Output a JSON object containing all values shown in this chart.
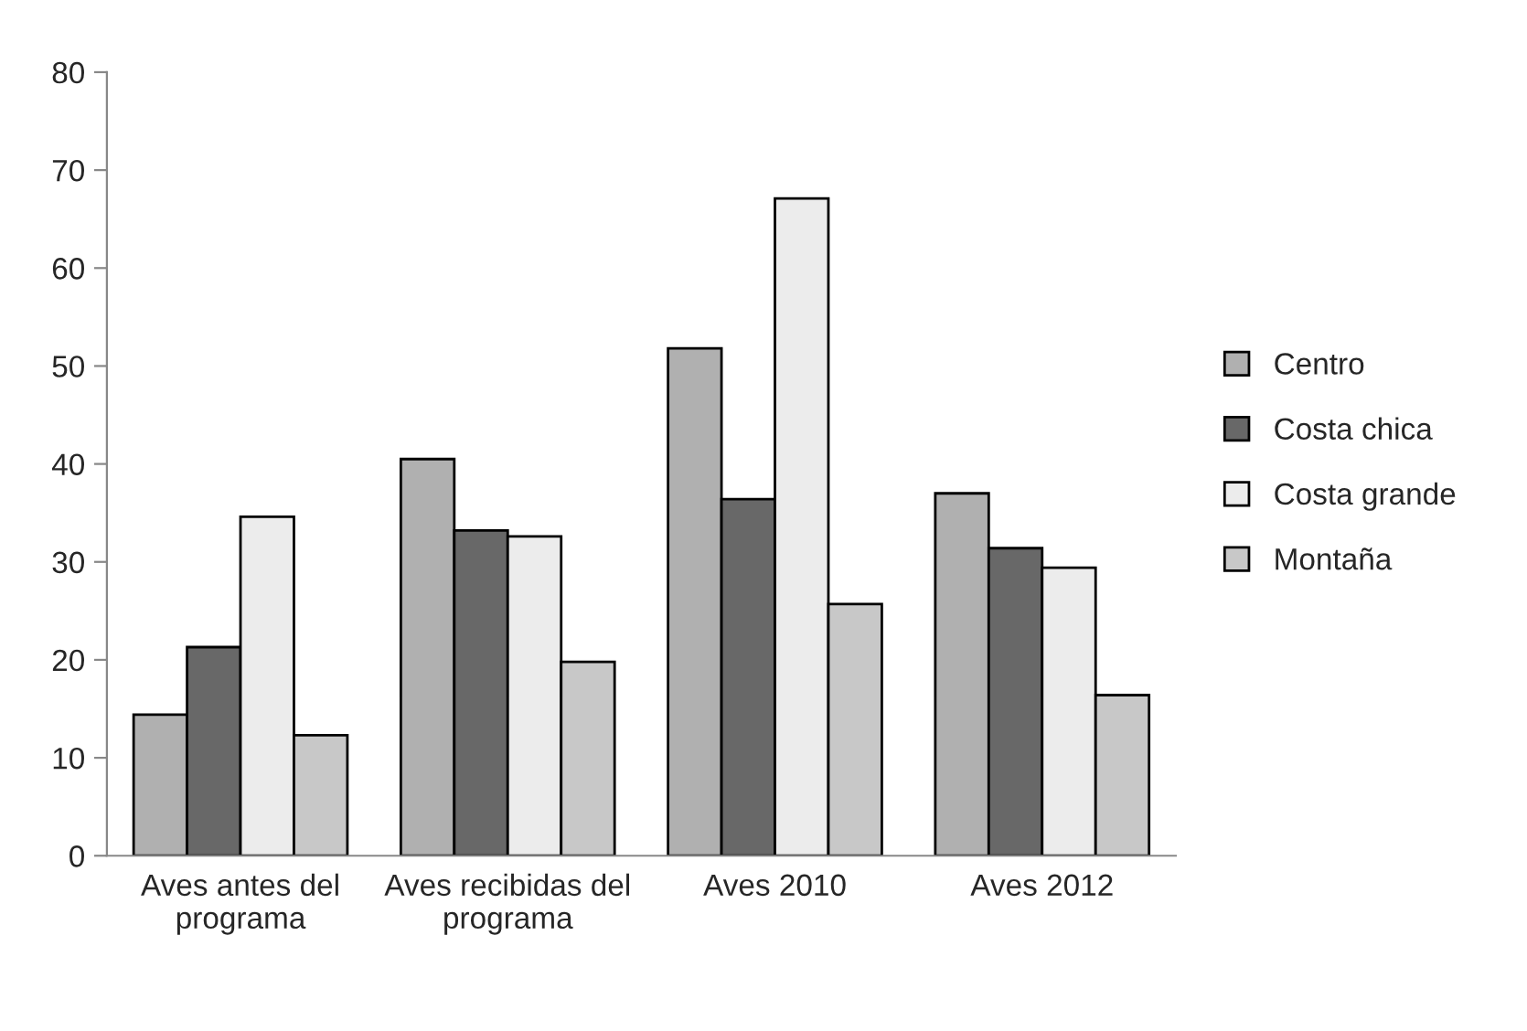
{
  "chart_data": {
    "type": "bar",
    "categories": [
      "Aves antes del\nprograma",
      "Aves recibidas del\nprograma",
      "Aves 2010",
      "Aves 2012"
    ],
    "series": [
      {
        "name": "Centro",
        "color": "#b0b0b0",
        "values": [
          14.4,
          40.5,
          51.8,
          37.0
        ]
      },
      {
        "name": "Costa chica",
        "color": "#686868",
        "values": [
          21.3,
          33.2,
          36.4,
          31.4
        ]
      },
      {
        "name": "Costa grande",
        "color": "#ececec",
        "values": [
          34.6,
          32.6,
          67.1,
          29.4
        ]
      },
      {
        "name": "Montaña",
        "color": "#c8c8c8",
        "values": [
          12.3,
          19.8,
          25.7,
          16.4
        ]
      }
    ],
    "ylim": [
      0,
      80
    ],
    "yticks": [
      0,
      10,
      20,
      30,
      40,
      50,
      60,
      70,
      80
    ],
    "grid": false,
    "legend": "right"
  }
}
